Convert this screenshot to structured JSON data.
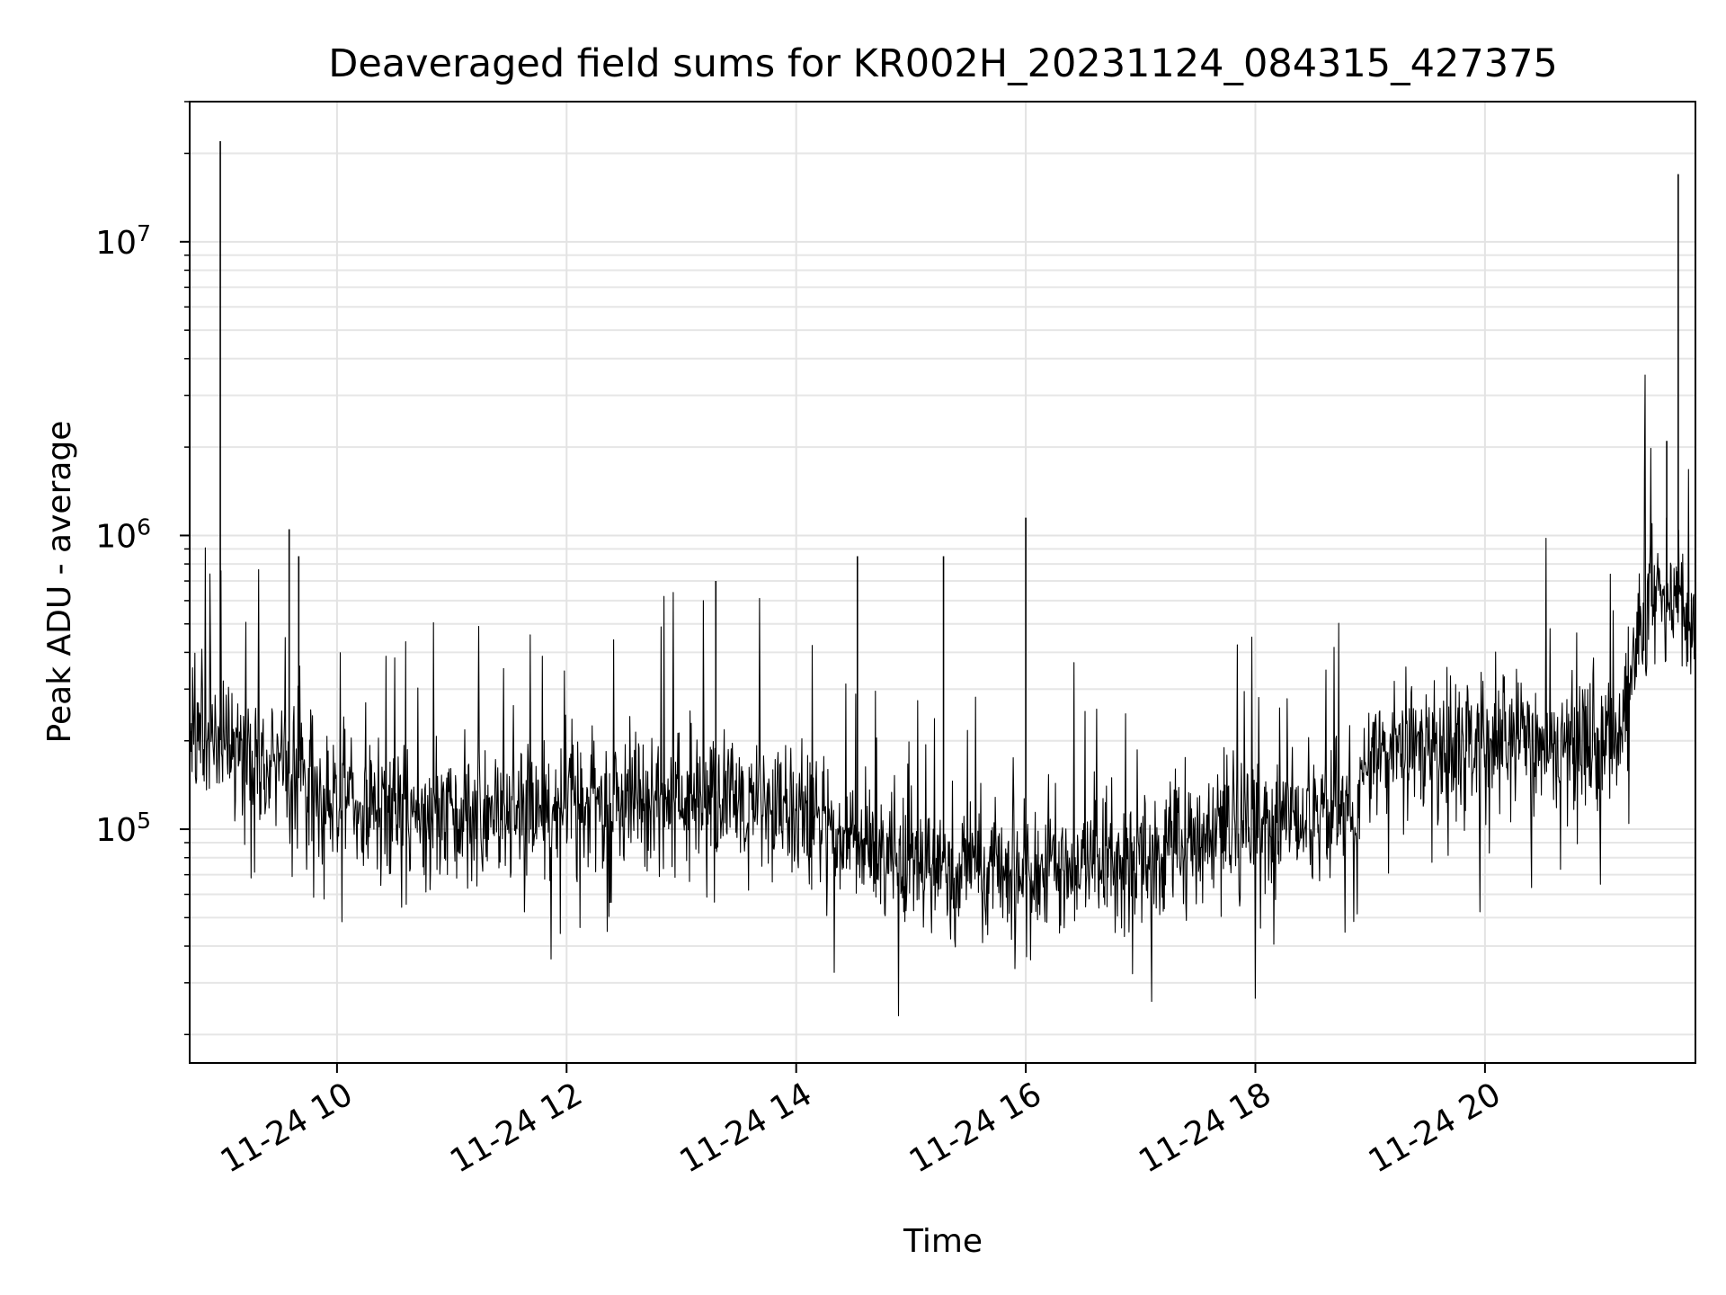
{
  "chart_data": {
    "type": "line",
    "title": "Deaveraged field sums for KR002H_20231124_084315_427375",
    "xlabel": "Time",
    "ylabel": "Peak ADU - average",
    "yscale": "log",
    "ylim": [
      16000,
      30000000
    ],
    "xlim": [
      "2023-11-24 08:43",
      "2023-11-24 21:50"
    ],
    "grid": true,
    "x_ticks": [
      {
        "t": "2023-11-24 10:00",
        "label": "11-24 10"
      },
      {
        "t": "2023-11-24 12:00",
        "label": "11-24 12"
      },
      {
        "t": "2023-11-24 14:00",
        "label": "11-24 14"
      },
      {
        "t": "2023-11-24 16:00",
        "label": "11-24 16"
      },
      {
        "t": "2023-11-24 18:00",
        "label": "11-24 18"
      },
      {
        "t": "2023-11-24 20:00",
        "label": "11-24 20"
      }
    ],
    "y_ticks": [
      {
        "v": 100000,
        "base": "10",
        "exp": "5"
      },
      {
        "v": 1000000,
        "base": "10",
        "exp": "6"
      },
      {
        "v": 10000000,
        "base": "10",
        "exp": "7"
      }
    ],
    "line_color": "#000000",
    "series": [
      {
        "values": [
          {
            "t": "2023-11-24 08:43",
            "y": 220000
          },
          {
            "t": "2023-11-24 09:00",
            "y": 200000
          },
          {
            "t": "2023-11-24 09:15",
            "y": 180000
          },
          {
            "t": "2023-11-24 09:30",
            "y": 160000
          },
          {
            "t": "2023-11-24 10:00",
            "y": 130000
          },
          {
            "t": "2023-11-24 10:30",
            "y": 110000
          },
          {
            "t": "2023-11-24 11:00",
            "y": 105000
          },
          {
            "t": "2023-11-24 11:30",
            "y": 110000
          },
          {
            "t": "2023-11-24 12:00",
            "y": 120000
          },
          {
            "t": "2023-11-24 12:30",
            "y": 125000
          },
          {
            "t": "2023-11-24 13:00",
            "y": 130000
          },
          {
            "t": "2023-11-24 13:30",
            "y": 125000
          },
          {
            "t": "2023-11-24 14:00",
            "y": 110000
          },
          {
            "t": "2023-11-24 14:30",
            "y": 90000
          },
          {
            "t": "2023-11-24 15:00",
            "y": 80000
          },
          {
            "t": "2023-11-24 15:30",
            "y": 75000
          },
          {
            "t": "2023-11-24 16:00",
            "y": 70000
          },
          {
            "t": "2023-11-24 16:30",
            "y": 70000
          },
          {
            "t": "2023-11-24 17:00",
            "y": 80000
          },
          {
            "t": "2023-11-24 17:30",
            "y": 95000
          },
          {
            "t": "2023-11-24 18:00",
            "y": 105000
          },
          {
            "t": "2023-11-24 18:30",
            "y": 110000
          },
          {
            "t": "2023-11-24 18:52",
            "y": 115000
          },
          {
            "t": "2023-11-24 19:00",
            "y": 180000
          },
          {
            "t": "2023-11-24 19:30",
            "y": 190000
          },
          {
            "t": "2023-11-24 20:00",
            "y": 200000
          },
          {
            "t": "2023-11-24 20:30",
            "y": 200000
          },
          {
            "t": "2023-11-24 21:00",
            "y": 190000
          },
          {
            "t": "2023-11-24 21:10",
            "y": 180000
          },
          {
            "t": "2023-11-24 21:20",
            "y": 450000
          },
          {
            "t": "2023-11-24 21:30",
            "y": 700000
          },
          {
            "t": "2023-11-24 21:40",
            "y": 550000
          },
          {
            "t": "2023-11-24 21:50",
            "y": 500000
          }
        ],
        "spikes": [
          {
            "t": "2023-11-24 08:59",
            "y": 22000000
          },
          {
            "t": "2023-11-24 09:35",
            "y": 1050000
          },
          {
            "t": "2023-11-24 09:40",
            "y": 850000
          },
          {
            "t": "2023-11-24 13:18",
            "y": 700000
          },
          {
            "t": "2023-11-24 14:32",
            "y": 850000
          },
          {
            "t": "2023-11-24 15:17",
            "y": 850000
          },
          {
            "t": "2023-11-24 16:00",
            "y": 1150000
          },
          {
            "t": "2023-11-24 21:41",
            "y": 17000000
          },
          {
            "t": "2023-11-24 21:35",
            "y": 2100000
          }
        ]
      }
    ]
  }
}
